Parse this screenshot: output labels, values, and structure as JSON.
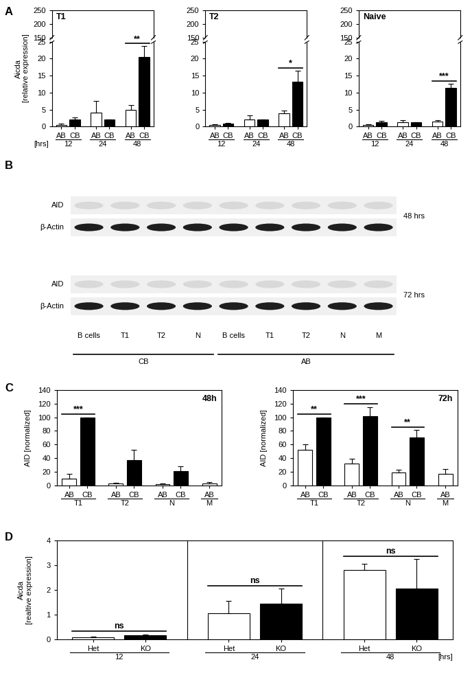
{
  "chart_data": [
    {
      "type": "bar",
      "panel": "A",
      "title": "T1",
      "y_label": "Aicda\n[relative expression]",
      "x_label": "[hrs]",
      "categories": [
        "12",
        "24",
        "48"
      ],
      "series": [
        {
          "name": "AB",
          "color": "#ffffff",
          "values": [
            0.5,
            4.2,
            5.0
          ],
          "errors": [
            0.3,
            3.3,
            1.3
          ]
        },
        {
          "name": "CB",
          "color": "#000000",
          "values": [
            2.0,
            2.0,
            20.5
          ],
          "errors": [
            0.6,
            0.0,
            3.2
          ]
        }
      ],
      "ylim": [
        0,
        250
      ],
      "y_break": [
        25,
        150
      ],
      "yticks": [
        0,
        5,
        10,
        15,
        20,
        25,
        150,
        200,
        250
      ],
      "annotations": [
        {
          "category": "48",
          "text": "**"
        }
      ]
    },
    {
      "type": "bar",
      "title": "T2",
      "categories": [
        "12",
        "24",
        "48"
      ],
      "series": [
        {
          "name": "AB",
          "color": "#ffffff",
          "values": [
            0.4,
            2.0,
            3.8
          ],
          "errors": [
            0.2,
            1.2,
            1.0
          ]
        },
        {
          "name": "CB",
          "color": "#000000",
          "values": [
            0.8,
            2.0,
            13.3
          ],
          "errors": [
            0.3,
            0.0,
            3.2
          ]
        }
      ],
      "ylim": [
        0,
        250
      ],
      "y_break": [
        25,
        150
      ],
      "yticks": [
        0,
        5,
        10,
        15,
        20,
        25,
        150,
        200,
        250
      ],
      "annotations": [
        {
          "category": "48",
          "text": "*"
        }
      ]
    },
    {
      "type": "bar",
      "title": "Naive",
      "categories": [
        "12",
        "24",
        "48"
      ],
      "series": [
        {
          "name": "AB",
          "color": "#ffffff",
          "values": [
            0.4,
            1.2,
            1.4
          ],
          "errors": [
            0.2,
            0.6,
            0.4
          ]
        },
        {
          "name": "CB",
          "color": "#000000",
          "values": [
            1.2,
            1.2,
            11.3
          ],
          "errors": [
            0.5,
            0.0,
            1.3
          ]
        }
      ],
      "ylim": [
        0,
        250
      ],
      "y_break": [
        25,
        150
      ],
      "yticks": [
        0,
        5,
        10,
        15,
        20,
        25,
        150,
        200,
        250
      ],
      "annotations": [
        {
          "category": "48",
          "text": "***"
        }
      ]
    },
    {
      "type": "bar",
      "panel": "C",
      "title": "48h",
      "y_label": "AID [normalized]",
      "categories": [
        "T1",
        "T2",
        "N",
        "M"
      ],
      "series": [
        {
          "name": "AB",
          "color": "#ffffff",
          "values": [
            10,
            3,
            2,
            3
          ],
          "errors": [
            7,
            1,
            1,
            2
          ]
        },
        {
          "name": "CB",
          "color": "#000000",
          "values": [
            100,
            37,
            21,
            null
          ],
          "errors": [
            0,
            15,
            7,
            null
          ]
        }
      ],
      "ylim": [
        0,
        140
      ],
      "yticks": [
        0,
        20,
        40,
        60,
        80,
        100,
        120,
        140
      ],
      "annotations": [
        {
          "category": "T1",
          "text": "***"
        }
      ]
    },
    {
      "type": "bar",
      "title": "72h",
      "y_label": "AID [normalized]",
      "categories": [
        "T1",
        "T2",
        "N",
        "M"
      ],
      "series": [
        {
          "name": "AB",
          "color": "#ffffff",
          "values": [
            52,
            32,
            19,
            17
          ],
          "errors": [
            8,
            7,
            4,
            7
          ]
        },
        {
          "name": "CB",
          "color": "#000000",
          "values": [
            100,
            102,
            70,
            null
          ],
          "errors": [
            0,
            13,
            11,
            null
          ]
        }
      ],
      "ylim": [
        0,
        140
      ],
      "yticks": [
        0,
        20,
        40,
        60,
        80,
        100,
        120,
        140
      ],
      "annotations": [
        {
          "category": "T1",
          "text": "**"
        },
        {
          "category": "T2",
          "text": "***"
        },
        {
          "category": "N",
          "text": "**"
        }
      ]
    },
    {
      "type": "bar",
      "panel": "D",
      "y_label": "Aicda\n[realtive expression]",
      "x_label": "[hrs]",
      "categories": [
        "12",
        "24",
        "48"
      ],
      "series": [
        {
          "name": "Het",
          "color": "#ffffff",
          "values": [
            0.1,
            1.05,
            2.8
          ],
          "errors": [
            0.02,
            0.5,
            0.25
          ]
        },
        {
          "name": "KO",
          "color": "#000000",
          "values": [
            0.18,
            1.45,
            2.05
          ],
          "errors": [
            0.03,
            0.6,
            1.2
          ]
        }
      ],
      "ylim": [
        0,
        4
      ],
      "yticks": [
        0,
        1,
        2,
        3,
        4
      ],
      "annotations": [
        {
          "category": "12",
          "text": "ns"
        },
        {
          "category": "24",
          "text": "ns"
        },
        {
          "category": "48",
          "text": "ns"
        }
      ]
    }
  ],
  "blot": {
    "panel": "B",
    "blocks": [
      {
        "time": "48 hrs",
        "rows": [
          "AID",
          "β-Actin"
        ]
      },
      {
        "time": "72 hrs",
        "rows": [
          "AID",
          "β-Actin"
        ]
      }
    ],
    "lanes": [
      "B cells",
      "T1",
      "T2",
      "N",
      "B cells",
      "T1",
      "T2",
      "N",
      "M"
    ],
    "groups": [
      {
        "label": "CB",
        "lanes": 4
      },
      {
        "label": "AB",
        "lanes": 5
      }
    ]
  }
}
